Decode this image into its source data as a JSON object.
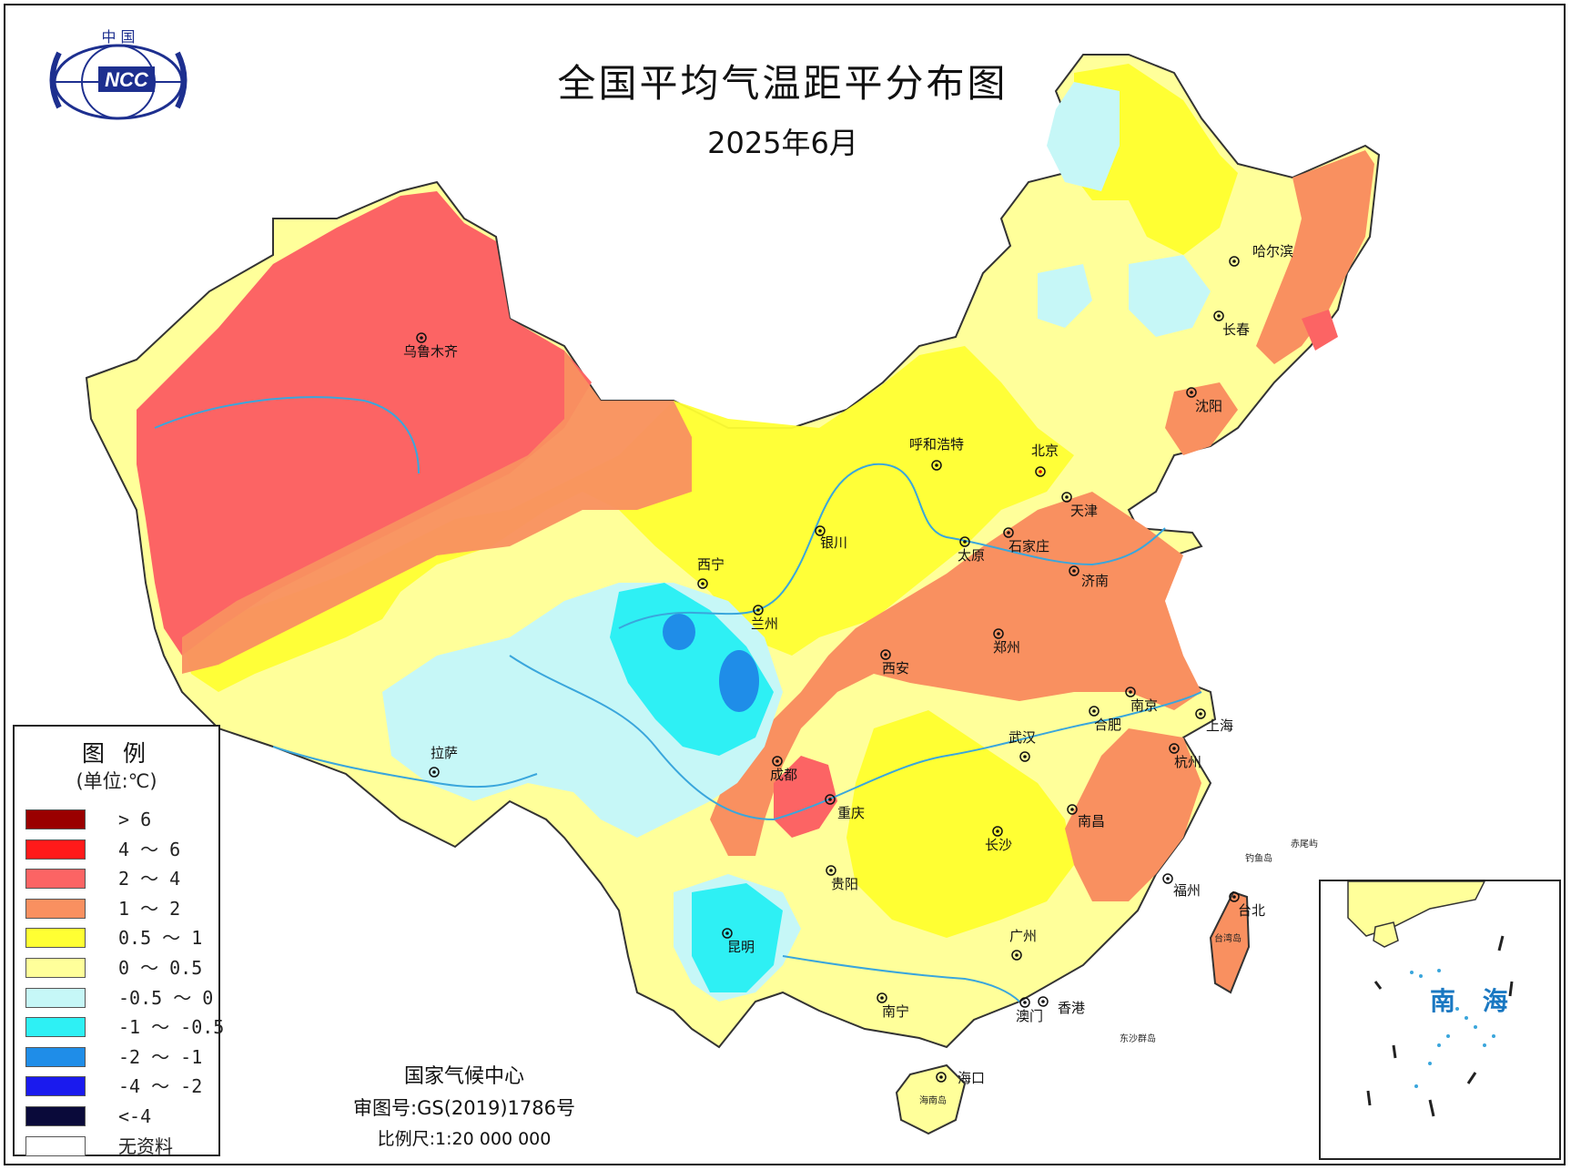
{
  "title": "全国平均气温距平分布图",
  "subtitle": "2025年6月",
  "logo": {
    "top_text": "中 国",
    "mark_text": "NCC",
    "icon": "ncc-logo-icon"
  },
  "legend": {
    "title": "图 例",
    "unit": "(单位:℃)",
    "items": [
      {
        "label": "> 6",
        "color": "#9a0000"
      },
      {
        "label": "4 ～ 6",
        "color": "#ff1a1a"
      },
      {
        "label": "2 ～ 4",
        "color": "#fc6464"
      },
      {
        "label": "1 ～ 2",
        "color": "#f99060"
      },
      {
        "label": "0.5 ～ 1",
        "color": "#ffff33"
      },
      {
        "label": "0 ～ 0.5",
        "color": "#ffff9a"
      },
      {
        "label": "-0.5 ～ 0",
        "color": "#c6f7f7"
      },
      {
        "label": "-1 ～ -0.5",
        "color": "#2ef0f4"
      },
      {
        "label": "-2 ～ -1",
        "color": "#1f8de8"
      },
      {
        "label": "-4 ～ -2",
        "color": "#1a1aee"
      },
      {
        "label": "<-4",
        "color": "#0a0a3a"
      },
      {
        "label": "无资料",
        "color": "#ffffff"
      }
    ]
  },
  "credits": {
    "organization": "国家气候中心",
    "map_approval": "审图号:GS(2019)1786号",
    "scale": "比例尺:1:20 000 000"
  },
  "inset": {
    "label": "南 海"
  },
  "cities": [
    {
      "name": "乌鲁木齐"
    },
    {
      "name": "哈尔滨"
    },
    {
      "name": "长春"
    },
    {
      "name": "沈阳"
    },
    {
      "name": "呼和浩特"
    },
    {
      "name": "北京"
    },
    {
      "name": "天津"
    },
    {
      "name": "银川"
    },
    {
      "name": "太原"
    },
    {
      "name": "石家庄"
    },
    {
      "name": "西宁"
    },
    {
      "name": "兰州"
    },
    {
      "name": "济南"
    },
    {
      "name": "郑州"
    },
    {
      "name": "西安"
    },
    {
      "name": "拉萨"
    },
    {
      "name": "南京"
    },
    {
      "name": "合肥"
    },
    {
      "name": "上海"
    },
    {
      "name": "武汉"
    },
    {
      "name": "成都"
    },
    {
      "name": "杭州"
    },
    {
      "name": "重庆"
    },
    {
      "name": "南昌"
    },
    {
      "name": "长沙"
    },
    {
      "name": "贵阳"
    },
    {
      "name": "福州"
    },
    {
      "name": "台北"
    },
    {
      "name": "昆明"
    },
    {
      "name": "广州"
    },
    {
      "name": "南宁"
    },
    {
      "name": "澳门"
    },
    {
      "name": "香港"
    },
    {
      "name": "海口"
    }
  ],
  "small_labels": [
    "台湾岛",
    "海南岛",
    "钓鱼岛",
    "赤尾屿",
    "东沙群岛"
  ],
  "colors": {
    "river": "#3aa6dc",
    "border": "#555555"
  }
}
